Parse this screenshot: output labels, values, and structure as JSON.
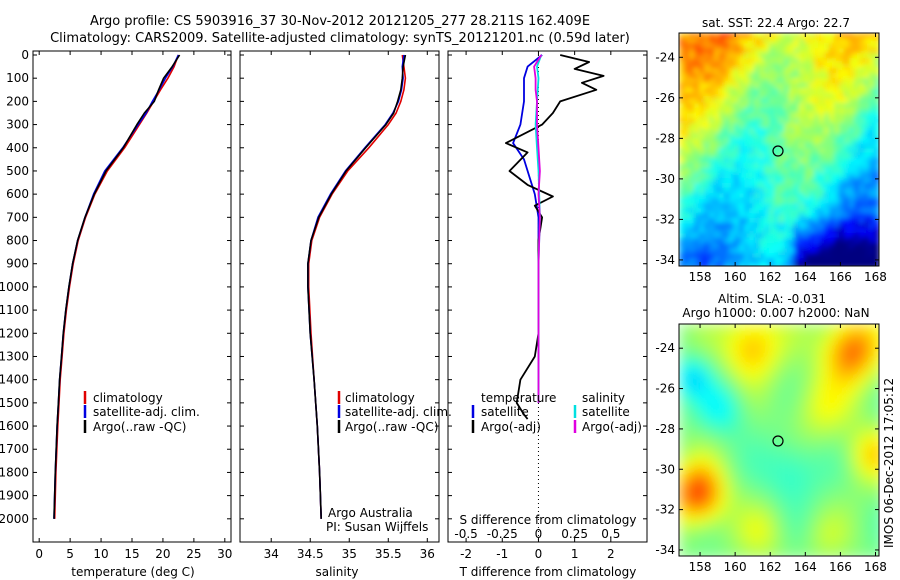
{
  "titles": {
    "line1": "Argo profile: CS 5903916_37 30-Nov-2012 20121205_277 28.211S 162.409E",
    "line2": "Climatology: CARS2009. Satellite-adjusted climatology: synTS_20121201.nc (0.59d later)"
  },
  "map_titles": {
    "sst": "sat. SST: 22.4  Argo: 22.7",
    "sla1": "Altim. SLA: -0.031",
    "sla2": "Argo h1000: 0.007  h2000: NaN"
  },
  "side_stamp": "IMOS 06-Dec-2012 17:05:12",
  "credits": {
    "line1": "Argo Australia",
    "line2": "PI: Susan Wijffels"
  },
  "legend_profiles": {
    "items": [
      {
        "label": "climatology",
        "color": "#e00000"
      },
      {
        "label": "satellite-adj. clim.",
        "color": "#0000e0"
      },
      {
        "label": "Argo(..raw -QC)",
        "color": "#000000"
      }
    ]
  },
  "legend_diff": {
    "temperature_header": "temperature",
    "salinity_header": "salinity",
    "items_t": [
      {
        "label": "satellite",
        "color": "#0000e0"
      },
      {
        "label": "Argo(-adj)",
        "color": "#000000"
      }
    ],
    "items_s": [
      {
        "label": "satellite",
        "color": "#00e0e0"
      },
      {
        "label": "Argo(-adj)",
        "color": "#e000e0"
      }
    ]
  },
  "chart_data": [
    {
      "type": "line",
      "xlabel": "temperature (deg C)",
      "ylabel": "",
      "xlim": [
        -1,
        31
      ],
      "ylim": [
        2100,
        0
      ],
      "xticks": [
        0,
        5,
        10,
        15,
        20,
        25,
        30
      ],
      "yticks": [
        0,
        100,
        200,
        300,
        400,
        500,
        600,
        700,
        800,
        900,
        1000,
        1100,
        1200,
        1300,
        1400,
        1500,
        1600,
        1700,
        1800,
        1900,
        2000
      ],
      "series": [
        {
          "name": "climatology",
          "color": "#e00000",
          "depth": [
            0,
            50,
            100,
            150,
            200,
            250,
            300,
            400,
            500,
            600,
            700,
            800,
            900,
            1000,
            1100,
            1200,
            1300,
            1400,
            1500,
            1600,
            1800,
            2000
          ],
          "values": [
            22.5,
            21.8,
            20.8,
            19.6,
            18.5,
            17.4,
            16.2,
            13.8,
            11.0,
            9.0,
            7.5,
            6.3,
            5.5,
            4.9,
            4.4,
            4.0,
            3.7,
            3.4,
            3.2,
            3.0,
            2.7,
            2.5
          ]
        },
        {
          "name": "satellite-adj. clim.",
          "color": "#0000e0",
          "depth": [
            0,
            50,
            100,
            150,
            200,
            250,
            300,
            400,
            500,
            600,
            700,
            800,
            900,
            1000,
            1100,
            1200,
            1300,
            1400,
            1500,
            1600,
            1800,
            2000
          ],
          "values": [
            22.5,
            21.6,
            20.4,
            19.4,
            18.3,
            17.3,
            16.0,
            13.5,
            10.6,
            8.8,
            7.4,
            6.2,
            5.4,
            4.8,
            4.3,
            3.9,
            3.6,
            3.3,
            3.1,
            2.9,
            2.6,
            2.4
          ]
        },
        {
          "name": "Argo(..raw -QC)",
          "color": "#000000",
          "depth": [
            0,
            50,
            100,
            150,
            200,
            250,
            300,
            400,
            500,
            600,
            700,
            800,
            900,
            1000,
            1100,
            1200,
            1300,
            1400,
            1500,
            1600,
            1800,
            2000
          ],
          "values": [
            22.7,
            21.5,
            20.1,
            19.3,
            18.6,
            17.0,
            15.8,
            13.6,
            10.8,
            8.9,
            7.4,
            6.2,
            5.4,
            4.8,
            4.3,
            3.9,
            3.6,
            3.3,
            3.1,
            2.9,
            2.6,
            2.4
          ]
        }
      ]
    },
    {
      "type": "line",
      "xlabel": "salinity",
      "ylabel": "",
      "xlim": [
        33.6,
        36.15
      ],
      "ylim": [
        2100,
        0
      ],
      "xticks": [
        34,
        34.5,
        35,
        35.5,
        36
      ],
      "series": [
        {
          "name": "climatology",
          "color": "#e00000",
          "depth": [
            0,
            50,
            100,
            150,
            200,
            250,
            300,
            400,
            500,
            600,
            700,
            800,
            900,
            1000,
            1200,
            1400,
            1600,
            1800,
            2000
          ],
          "values": [
            35.68,
            35.7,
            35.72,
            35.7,
            35.66,
            35.6,
            35.5,
            35.25,
            34.98,
            34.78,
            34.62,
            34.52,
            34.48,
            34.48,
            34.51,
            34.55,
            34.59,
            34.62,
            34.64
          ]
        },
        {
          "name": "satellite-adj. clim.",
          "color": "#0000e0",
          "depth": [
            0,
            50,
            100,
            150,
            200,
            250,
            300,
            400,
            500,
            600,
            700,
            800,
            900,
            1000,
            1200,
            1400,
            1600,
            1800,
            2000
          ],
          "values": [
            35.7,
            35.68,
            35.69,
            35.67,
            35.63,
            35.56,
            35.46,
            35.2,
            34.95,
            34.76,
            34.6,
            34.51,
            34.47,
            34.47,
            34.5,
            34.55,
            34.59,
            34.62,
            34.64
          ]
        },
        {
          "name": "Argo(..raw -QC)",
          "color": "#000000",
          "depth": [
            0,
            50,
            100,
            150,
            200,
            250,
            300,
            400,
            500,
            600,
            700,
            800,
            900,
            1000,
            1200,
            1400,
            1600,
            1800,
            2000
          ],
          "values": [
            35.72,
            35.69,
            35.68,
            35.66,
            35.62,
            35.57,
            35.47,
            35.21,
            34.96,
            34.77,
            34.61,
            34.51,
            34.47,
            34.47,
            34.5,
            34.55,
            34.59,
            34.62,
            34.64
          ]
        }
      ]
    },
    {
      "type": "line",
      "xlabel": "T difference from climatology",
      "x2label": "S difference from climatology",
      "xlim": [
        -2.5,
        3
      ],
      "x2lim": [
        -0.625,
        0.75
      ],
      "ylim": [
        2100,
        0
      ],
      "xticks": [
        -2,
        -1,
        0,
        1,
        2
      ],
      "x2ticks": [
        -0.5,
        -0.25,
        0,
        0.25,
        0.5
      ],
      "x2ticklabels": [
        "-0.5",
        "-0.25",
        "0",
        "0.25",
        "0.5"
      ],
      "series": [
        {
          "name": "temperature satellite",
          "color": "#0000e0",
          "axis": "T",
          "depth": [
            0,
            50,
            100,
            200,
            300,
            380,
            450,
            550,
            600,
            700,
            800,
            1000,
            1200,
            1500
          ],
          "values": [
            0.1,
            -0.3,
            -0.4,
            -0.4,
            -0.5,
            -0.7,
            -0.4,
            -0.2,
            -0.1,
            0.0,
            0.0,
            0.0,
            0.0,
            0.0
          ]
        },
        {
          "name": "temperature Argo(-adj)",
          "color": "#000000",
          "axis": "T",
          "depth": [
            0,
            30,
            60,
            90,
            120,
            150,
            200,
            250,
            300,
            380,
            420,
            500,
            560,
            610,
            650,
            700,
            800,
            900,
            1000,
            1200,
            1300,
            1400,
            1500,
            1550,
            1570
          ],
          "values": [
            0.6,
            1.4,
            1.0,
            1.8,
            1.2,
            1.6,
            0.6,
            0.4,
            0.1,
            -0.9,
            -0.3,
            -0.8,
            -0.3,
            0.4,
            -0.1,
            0.1,
            0.0,
            0.0,
            0.0,
            0.0,
            -0.1,
            -0.5,
            -0.6,
            -0.4,
            -0.3
          ]
        },
        {
          "name": "salinity satellite",
          "color": "#00e0e0",
          "axis": "S",
          "depth": [
            0,
            50,
            100,
            200,
            300,
            400,
            500,
            700,
            900,
            1200,
            1500
          ],
          "values": [
            0.02,
            -0.01,
            0.0,
            -0.01,
            -0.02,
            -0.01,
            0.0,
            0.01,
            0.0,
            0.0,
            0.0
          ]
        },
        {
          "name": "salinity Argo(-adj)",
          "color": "#e000e0",
          "axis": "S",
          "depth": [
            0,
            50,
            100,
            150,
            200,
            300,
            400,
            500,
            600,
            700,
            900,
            1200,
            1500
          ],
          "values": [
            0.02,
            -0.03,
            -0.02,
            -0.02,
            -0.01,
            -0.01,
            0.0,
            0.01,
            0.0,
            0.01,
            0.0,
            0.0,
            0.0
          ]
        }
      ]
    },
    {
      "type": "heatmap",
      "title": "sat. SST: 22.4  Argo: 22.7",
      "xlim": [
        156.8,
        168.2
      ],
      "ylim": [
        -34.3,
        -22.8
      ],
      "xticks": [
        158,
        160,
        162,
        164,
        166,
        168
      ],
      "yticks": [
        -24,
        -26,
        -28,
        -30,
        -32,
        -34
      ],
      "argo_position": {
        "lon": 162.409,
        "lat": -28.211
      }
    },
    {
      "type": "heatmap",
      "title": "Altim. SLA: -0.031",
      "xlim": [
        156.8,
        168.2
      ],
      "ylim": [
        -34.3,
        -22.8
      ],
      "xticks": [
        158,
        160,
        162,
        164,
        166,
        168
      ],
      "yticks": [
        -24,
        -26,
        -28,
        -30,
        -32,
        -34
      ],
      "argo_position": {
        "lon": 162.409,
        "lat": -28.211
      }
    }
  ]
}
